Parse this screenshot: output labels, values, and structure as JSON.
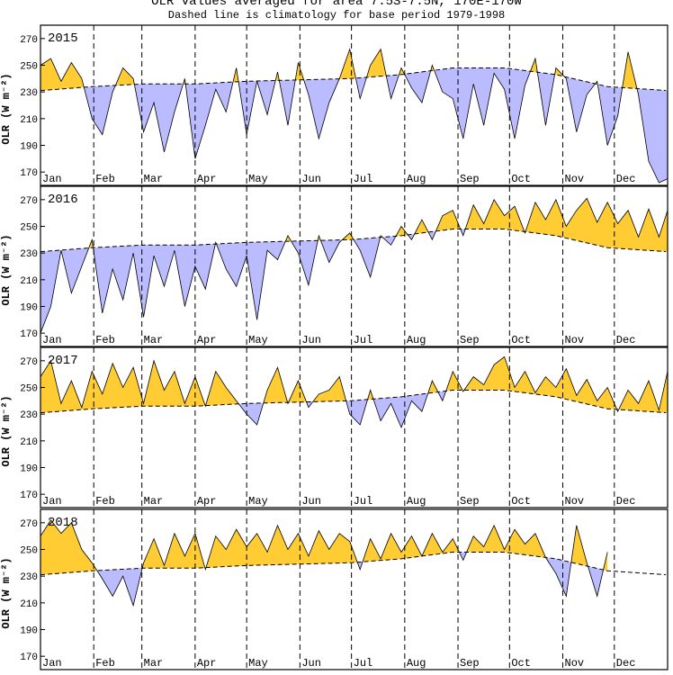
{
  "title": "OLR values averaged for area 7.5S-7.5N, 170E-170W",
  "subtitle": "Dashed line is climatology for base period 1979-1998",
  "chart_data": {
    "type": "area",
    "ylabel": "OLR (W m⁻²)",
    "ylim": [
      160,
      280
    ],
    "yticks": [
      170,
      190,
      210,
      230,
      250,
      270
    ],
    "months": [
      "Jan",
      "Feb",
      "Mar",
      "Apr",
      "May",
      "Jun",
      "Jul",
      "Aug",
      "Sep",
      "Oct",
      "Nov",
      "Dec"
    ],
    "climatology": {
      "x": [
        0,
        30,
        60,
        90,
        120,
        150,
        180,
        210,
        240,
        270,
        300,
        330,
        365
      ],
      "y": [
        231,
        234,
        236,
        236,
        238,
        239,
        240,
        243,
        248,
        248,
        243,
        234,
        231
      ]
    },
    "colors": {
      "above": "#ffcc33",
      "below": "#bbbbff",
      "line": "#000000"
    },
    "panels": [
      {
        "year": "2015",
        "x": [
          0,
          6,
          12,
          18,
          24,
          30,
          36,
          42,
          48,
          54,
          60,
          66,
          72,
          78,
          84,
          90,
          96,
          102,
          108,
          114,
          120,
          126,
          132,
          138,
          144,
          150,
          156,
          162,
          168,
          174,
          180,
          186,
          192,
          198,
          204,
          210,
          216,
          222,
          228,
          234,
          240,
          246,
          252,
          258,
          264,
          270,
          276,
          282,
          288,
          294,
          300,
          306,
          312,
          318,
          324,
          330,
          336,
          342,
          348,
          354,
          360,
          365
        ],
        "y": [
          250,
          255,
          238,
          252,
          240,
          210,
          198,
          230,
          248,
          240,
          200,
          222,
          185,
          215,
          240,
          180,
          205,
          232,
          215,
          248,
          198,
          238,
          213,
          245,
          205,
          252,
          228,
          195,
          222,
          240,
          262,
          225,
          250,
          262,
          225,
          248,
          233,
          222,
          250,
          230,
          225,
          195,
          236,
          205,
          244,
          232,
          195,
          235,
          255,
          205,
          248,
          240,
          200,
          228,
          238,
          190,
          212,
          260,
          228,
          178,
          162,
          165
        ]
      },
      {
        "year": "2016",
        "x": [
          0,
          6,
          12,
          18,
          24,
          30,
          36,
          42,
          48,
          54,
          60,
          66,
          72,
          78,
          84,
          90,
          96,
          102,
          108,
          114,
          120,
          126,
          132,
          138,
          144,
          150,
          156,
          162,
          168,
          174,
          180,
          186,
          192,
          198,
          204,
          210,
          216,
          222,
          228,
          234,
          240,
          246,
          252,
          258,
          264,
          270,
          276,
          282,
          288,
          294,
          300,
          306,
          312,
          318,
          324,
          330,
          336,
          342,
          348,
          354,
          360,
          365
        ],
        "y": [
          170,
          190,
          232,
          200,
          220,
          240,
          185,
          218,
          195,
          230,
          182,
          228,
          205,
          232,
          190,
          220,
          203,
          238,
          218,
          205,
          228,
          180,
          232,
          225,
          243,
          230,
          206,
          243,
          223,
          238,
          245,
          232,
          212,
          243,
          236,
          250,
          240,
          255,
          240,
          258,
          262,
          243,
          266,
          252,
          270,
          258,
          265,
          245,
          268,
          255,
          270,
          250,
          262,
          271,
          253,
          268,
          252,
          262,
          242,
          263,
          242,
          262
        ]
      },
      {
        "year": "2017",
        "x": [
          0,
          6,
          12,
          18,
          24,
          30,
          36,
          42,
          48,
          54,
          60,
          66,
          72,
          78,
          84,
          90,
          96,
          102,
          108,
          114,
          120,
          126,
          132,
          138,
          144,
          150,
          156,
          162,
          168,
          174,
          180,
          186,
          192,
          198,
          204,
          210,
          216,
          222,
          228,
          234,
          240,
          246,
          252,
          258,
          264,
          270,
          276,
          282,
          288,
          294,
          300,
          306,
          312,
          318,
          324,
          330,
          336,
          342,
          348,
          354,
          360,
          365
        ],
        "y": [
          258,
          270,
          238,
          255,
          235,
          262,
          245,
          268,
          250,
          265,
          238,
          270,
          248,
          262,
          238,
          258,
          236,
          262,
          250,
          240,
          230,
          222,
          248,
          265,
          238,
          255,
          235,
          245,
          248,
          258,
          230,
          222,
          248,
          225,
          238,
          220,
          240,
          232,
          255,
          240,
          262,
          247,
          258,
          252,
          267,
          273,
          250,
          262,
          246,
          258,
          250,
          264,
          244,
          256,
          240,
          250,
          232,
          248,
          238,
          255,
          233,
          262
        ]
      },
      {
        "year": "2018",
        "x": [
          0,
          6,
          12,
          18,
          24,
          30,
          36,
          42,
          48,
          54,
          60,
          66,
          72,
          78,
          84,
          90,
          96,
          102,
          108,
          114,
          120,
          126,
          132,
          138,
          144,
          150,
          156,
          162,
          168,
          174,
          180,
          186,
          192,
          198,
          204,
          210,
          216,
          222,
          228,
          234,
          240,
          246,
          252,
          258,
          264,
          270,
          276,
          282,
          288,
          294,
          300,
          306,
          312,
          318,
          324,
          330
        ],
        "y": [
          260,
          272,
          262,
          270,
          250,
          240,
          228,
          215,
          230,
          208,
          240,
          258,
          238,
          262,
          245,
          262,
          235,
          260,
          250,
          265,
          252,
          262,
          248,
          268,
          250,
          262,
          245,
          264,
          250,
          262,
          256,
          235,
          258,
          243,
          262,
          248,
          260,
          245,
          262,
          248,
          258,
          242,
          260,
          252,
          268,
          250,
          265,
          254,
          262,
          244,
          232,
          215,
          268,
          240,
          215,
          248
        ]
      }
    ]
  }
}
